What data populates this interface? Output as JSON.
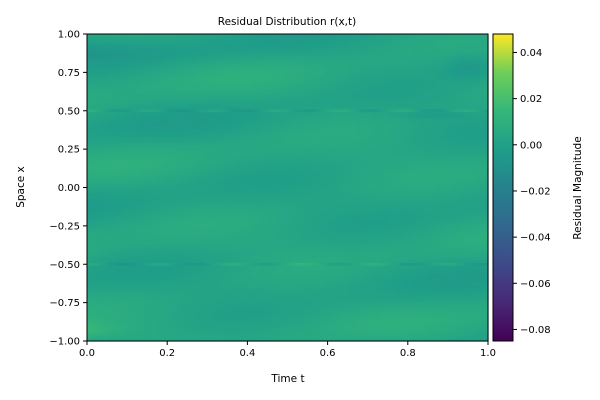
{
  "chart_data": {
    "type": "heatmap",
    "title": "Residual Distribution r(x,t)",
    "xlabel": "Time t",
    "ylabel": "Space x",
    "xlim": [
      0.0,
      1.0
    ],
    "ylim": [
      -1.0,
      1.0
    ],
    "x_ticks": [
      "0.0",
      "0.2",
      "0.4",
      "0.6",
      "0.8",
      "1.0"
    ],
    "y_ticks": [
      "1.00",
      "0.75",
      "0.50",
      "0.25",
      "0.00",
      "−0.25",
      "−0.50",
      "−0.75",
      "−1.00"
    ],
    "colormap": "viridis",
    "colorbar": {
      "label": "Residual Magnitude",
      "range": [
        -0.085,
        0.048
      ],
      "ticks": [
        "0.04",
        "0.02",
        "0.00",
        "−0.02",
        "−0.04",
        "−0.06",
        "−0.08"
      ]
    },
    "features": [
      {
        "description": "thin stripe",
        "x": 0.5
      },
      {
        "description": "thin stripe",
        "x": -0.5
      },
      {
        "description": "slight negative region near t=0",
        "x": 0.9
      },
      {
        "description": "slight positive region near t=0",
        "x": -0.93
      }
    ],
    "grid": false
  }
}
